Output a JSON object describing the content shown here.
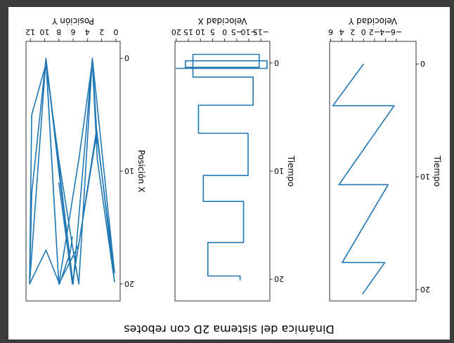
{
  "figure": {
    "suptitle": "Dinámica del sistema 2D con rebotes"
  },
  "colors": {
    "line": "#1f77b4",
    "frame": "#3c3c3c",
    "background": "#ffffff"
  },
  "chart_data": [
    {
      "type": "line",
      "title": "",
      "xlabel": "Velocidad Y",
      "ylabel": "Tiempo",
      "xlim": [
        -9.6,
        6.2
      ],
      "ylim": [
        -2,
        21
      ],
      "xticks": [
        -6,
        -4,
        -2,
        0,
        2,
        4,
        6
      ],
      "xticklabels": [
        "−6",
        "−4",
        "−2",
        "0",
        "2",
        "4",
        "6"
      ],
      "yticks": [
        0,
        10,
        20
      ],
      "yticklabels": [
        "0",
        "10",
        "20"
      ],
      "grid": false,
      "series": [
        {
          "x": [
            0,
            5.6,
            -5.6,
            4.5,
            -4.5,
            3.9,
            -3.9,
            0.2
          ],
          "y": [
            0,
            3.7,
            3.7,
            10.7,
            10.7,
            17.6,
            17.6,
            20.4
          ]
        }
      ]
    },
    {
      "type": "line",
      "title": "",
      "xlabel": "Velocidad X",
      "ylabel": "Tiempo",
      "xlim": [
        -18.7,
        20.5
      ],
      "ylim": [
        -2,
        22
      ],
      "xticks": [
        -15,
        -10,
        -5,
        0,
        5,
        10,
        15,
        20
      ],
      "xticklabels": [
        "−15",
        "−10",
        "−5",
        "0",
        "5",
        "10",
        "15",
        "20"
      ],
      "yticks": [
        0,
        10,
        20
      ],
      "yticklabels": [
        "0",
        "10",
        "20"
      ],
      "grid": false,
      "series": [
        {
          "x": [
            -6.4,
            -6.4,
            6.9,
            6.9,
            -7.8,
            -7.8,
            8.8,
            8.8,
            -9.7,
            -9.7,
            10.8,
            10.8,
            -11.8,
            -11.8,
            13.1,
            13.1,
            -14.3,
            -14.3,
            16.2,
            16.2,
            -17.5,
            -17.5,
            20.2
          ],
          "y": [
            20.1,
            19.7,
            19.7,
            16.6,
            16.6,
            12.8,
            12.8,
            10.4,
            10.4,
            6.5,
            6.5,
            3.9,
            3.9,
            1.3,
            1.3,
            -0.8,
            -0.8,
            0.4,
            0.4,
            -0.2,
            -0.2,
            0.5,
            0.5
          ]
        }
      ]
    },
    {
      "type": "line",
      "title": "",
      "xlabel": "Posición Y",
      "ylabel": "Posición X",
      "xlim": [
        -0.6,
        12.6
      ],
      "ylim": [
        -1.5,
        21.5
      ],
      "xticks": [
        0,
        2,
        4,
        6,
        8,
        10,
        12
      ],
      "xticklabels": [
        "0",
        "2",
        "4",
        "6",
        "8",
        "10",
        "12"
      ],
      "yticks": [
        0,
        10,
        20
      ],
      "yticklabels": [
        "0",
        "10",
        "20"
      ],
      "grid": false,
      "series": [
        {
          "x": [
            6.1,
            6.4,
            7.9,
            9.8,
            12.1,
            11.8,
            9.8,
            8.0,
            6.0,
            5.2,
            3.3,
            2.6,
            3.3,
            6.0,
            8.0,
            9.8,
            11.8,
            12.1,
            9.8,
            8.0,
            5.2,
            3.3,
            2.6,
            0.2,
            2.7,
            5.2,
            8.0,
            9.8,
            9.8,
            6.0,
            3.3,
            0.2,
            2.7,
            6.1,
            8.0
          ],
          "y": [
            15.8,
            17.2,
            20.0,
            17.0,
            20.0,
            5.0,
            0.5,
            9.0,
            17.0,
            20.0,
            0.0,
            7.5,
            0.0,
            20.0,
            10.0,
            0.0,
            12.0,
            20.0,
            0.0,
            20.0,
            9.0,
            0.3,
            9.0,
            19.8,
            6.3,
            16.5,
            20.0,
            0.2,
            0.0,
            20.0,
            0.0,
            19.0,
            6.7,
            20.0,
            11.0
          ]
        }
      ]
    }
  ]
}
